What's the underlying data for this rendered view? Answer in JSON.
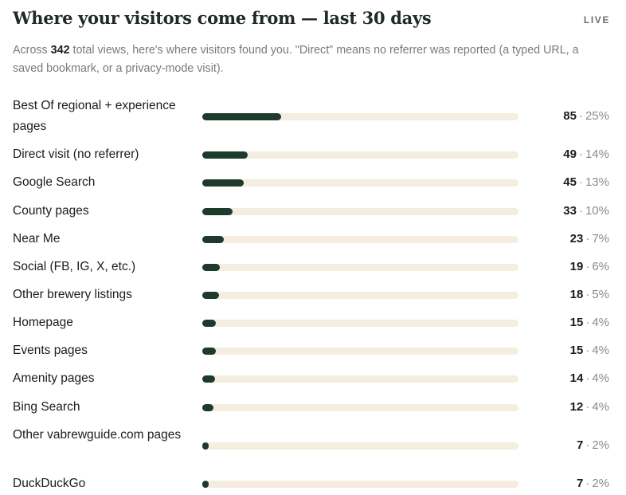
{
  "header": {
    "title": "Where your visitors come from — last 30 days",
    "live_label": "LIVE"
  },
  "summary": {
    "prefix": "Across ",
    "total": "342",
    "suffix": " total views, here's where visitors found you. \"Direct\" means no referrer was reported (a typed URL, a saved bookmark, or a privacy-mode visit)."
  },
  "chart_data": {
    "type": "bar",
    "title": "Where your visitors come from — last 30 days",
    "categories": [
      "Best Of regional + experience pages",
      "Direct visit (no referrer)",
      "Google Search",
      "County pages",
      "Near Me",
      "Social (FB, IG, X, etc.)",
      "Other brewery listings",
      "Homepage",
      "Events pages",
      "Amenity pages",
      "Bing Search",
      "Other vabrewguide.com pages",
      "DuckDuckGo"
    ],
    "values": [
      85,
      49,
      45,
      33,
      23,
      19,
      18,
      15,
      15,
      14,
      12,
      7,
      7
    ],
    "percent_labels": [
      "25%",
      "14%",
      "13%",
      "10%",
      "7%",
      "6%",
      "5%",
      "4%",
      "4%",
      "4%",
      "4%",
      "2%",
      "2%"
    ],
    "separator": "·",
    "total": 342,
    "colors": {
      "bar": "#1d3a2c",
      "track": "#f4ede0"
    }
  }
}
